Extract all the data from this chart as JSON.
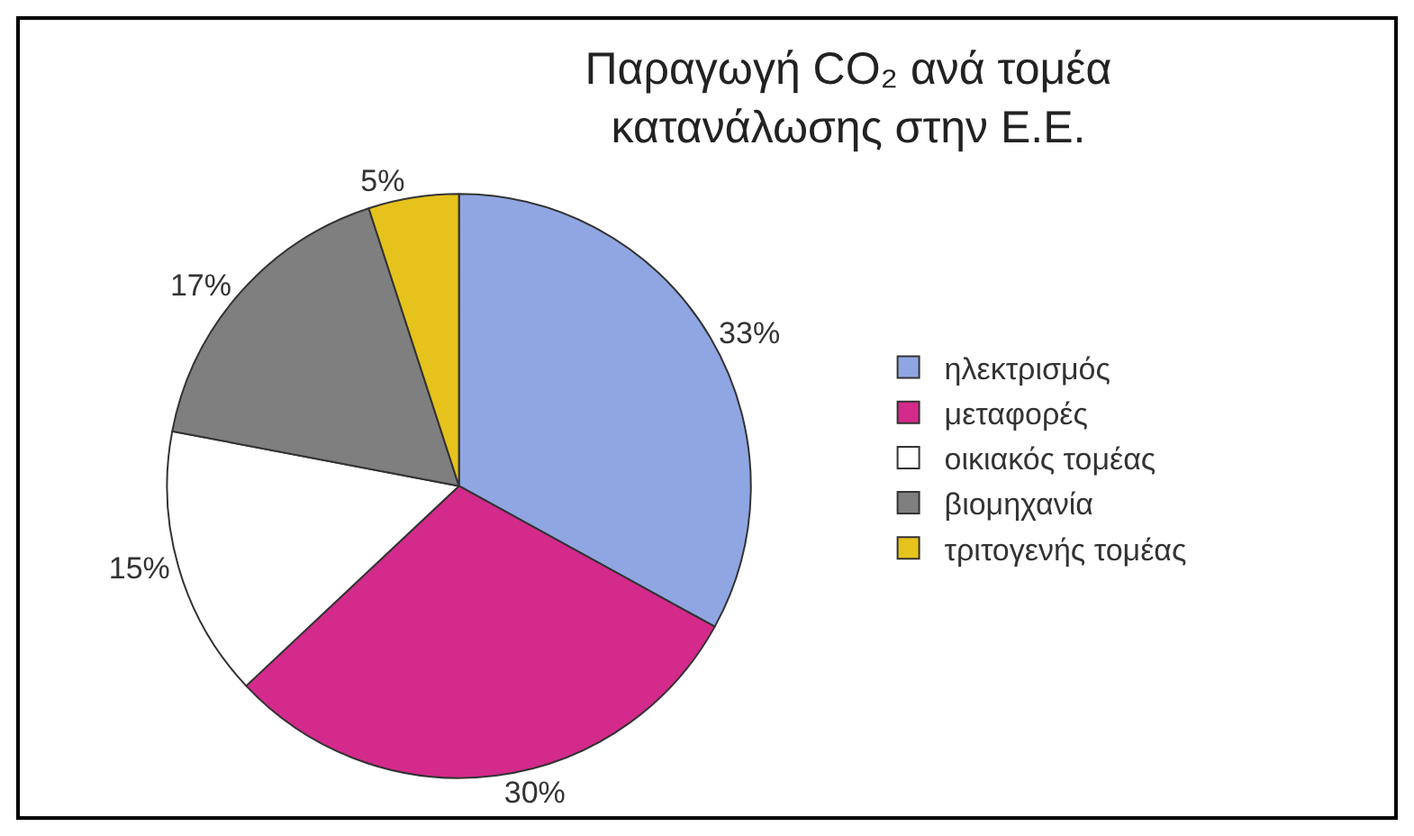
{
  "chart_data": {
    "type": "pie",
    "title": "Παραγωγή CO₂ ανά τομέα\nκατανάλωσης στην Ε.Ε.",
    "categories": [
      "ηλεκτρισμός",
      "μεταφορές",
      "οικιακός τομέας",
      "βιομηχανία",
      "τριτογενής τομέας"
    ],
    "values": [
      33,
      30,
      15,
      17,
      5
    ],
    "value_labels": [
      "33%",
      "30%",
      "15%",
      "17%",
      "5%"
    ],
    "colors": [
      "#8fa6e2",
      "#d42a8c",
      "#ffffff",
      "#7f7f7f",
      "#e6c21c"
    ],
    "legend": "right"
  }
}
